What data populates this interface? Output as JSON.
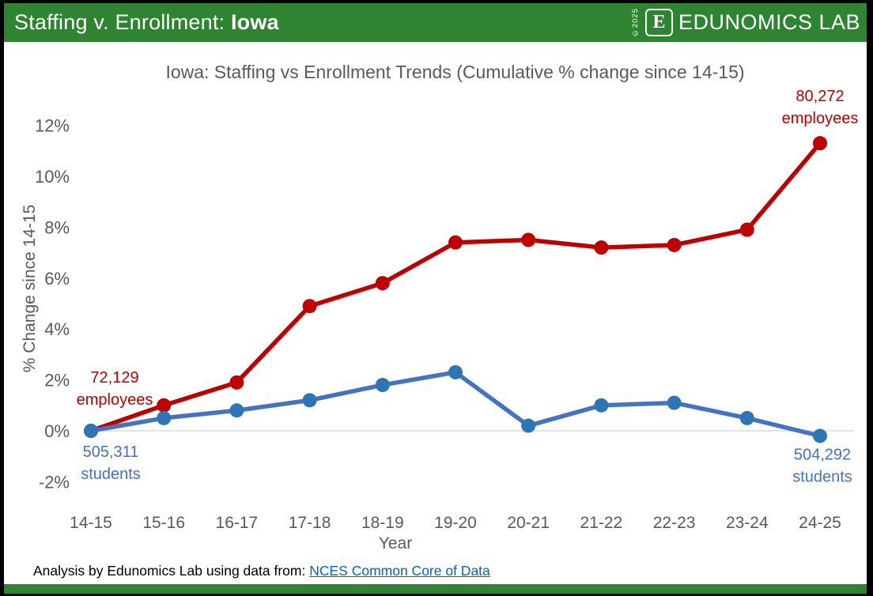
{
  "header": {
    "title_prefix": "Staffing v. Enrollment: ",
    "title_state": "Iowa",
    "copyright": "©2025",
    "logo_letter": "E",
    "logo_text": "EDUNOMICS LAB"
  },
  "footer": {
    "source_prefix": "Analysis by Edunomics Lab using data from: ",
    "source_link": "NCES Common Core of Data"
  },
  "colors": {
    "header_green": "#2e8431",
    "employees_red": "#c00000",
    "students_blue": "#4472c4",
    "students_marker": "#2e75b6",
    "axis_gray": "#595959",
    "gridline": "#d9d9d9",
    "link_blue": "#0563c1"
  },
  "chart_data": {
    "type": "line",
    "title": "Iowa: Staffing vs Enrollment Trends (Cumulative % change since 14-15)",
    "xlabel": "Year",
    "ylabel": "% Change since 14-15",
    "unit": "%",
    "categories": [
      "14-15",
      "15-16",
      "16-17",
      "17-18",
      "18-19",
      "19-20",
      "20-21",
      "21-22",
      "22-23",
      "23-24",
      "24-25"
    ],
    "y_ticks": [
      {
        "label": "12%",
        "value": 12
      },
      {
        "label": "10%",
        "value": 10
      },
      {
        "label": "8%",
        "value": 8
      },
      {
        "label": "6%",
        "value": 6
      },
      {
        "label": "4%",
        "value": 4
      },
      {
        "label": "2%",
        "value": 2
      },
      {
        "label": "0%",
        "value": 0
      },
      {
        "label": "-2%",
        "value": -2
      }
    ],
    "ylim": [
      -2.8,
      13.2
    ],
    "grid": "zero-line-only",
    "legend": "none",
    "series": [
      {
        "name": "employees",
        "color": "#c00000",
        "marker_color": "#c00000",
        "values": [
          0,
          1.0,
          1.9,
          4.9,
          5.8,
          7.4,
          7.5,
          7.2,
          7.3,
          7.9,
          11.3
        ],
        "start_count": "72,129",
        "end_count": "80,272"
      },
      {
        "name": "students",
        "color": "#4472c4",
        "marker_color": "#2e75b6",
        "values": [
          0,
          0.5,
          0.8,
          1.2,
          1.8,
          2.3,
          0.2,
          1.0,
          1.1,
          0.5,
          -0.2
        ],
        "start_count": "505,311",
        "end_count": "504,292"
      }
    ],
    "annotations": [
      {
        "lines": [
          "72,129",
          "employees"
        ],
        "color": "#c00000",
        "series": 0,
        "point": "first",
        "placement": "above-left"
      },
      {
        "lines": [
          "80,272",
          "employees"
        ],
        "color": "#c00000",
        "series": 0,
        "point": "last",
        "placement": "above-right"
      },
      {
        "lines": [
          "505,311",
          "students"
        ],
        "color": "#4472c4",
        "series": 1,
        "point": "first",
        "placement": "below-left"
      },
      {
        "lines": [
          "504,292",
          "students"
        ],
        "color": "#4472c4",
        "series": 1,
        "point": "last",
        "placement": "below-right"
      }
    ]
  }
}
